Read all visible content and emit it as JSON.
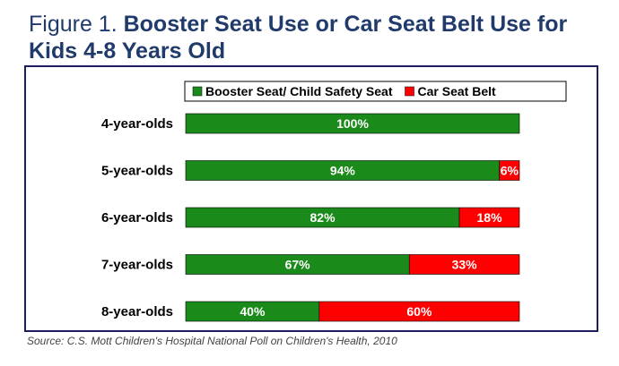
{
  "title": {
    "prefix": "Figure 1. ",
    "main": "Booster Seat Use or Car Seat Belt Use for Kids 4-8 Years Old"
  },
  "source": "Source: C.S. Mott Children's Hospital National Poll on Children's Health, 2010",
  "colors": {
    "booster": "#1a8a1a",
    "belt": "#ff0000",
    "frame": "#1b1f5e",
    "title": "#1f3a6b"
  },
  "chart_data": {
    "type": "bar",
    "orientation": "horizontal",
    "stacked": true,
    "percent_stacked": true,
    "categories": [
      "4-year-olds",
      "5-year-olds",
      "6-year-olds",
      "7-year-olds",
      "8-year-olds"
    ],
    "series": [
      {
        "name": "Booster Seat/ Child Safety Seat",
        "values": [
          100,
          94,
          82,
          67,
          40
        ],
        "labels": [
          "100%",
          "94%",
          "82%",
          "67%",
          "40%"
        ],
        "color": "#1a8a1a"
      },
      {
        "name": "Car Seat Belt",
        "values": [
          0,
          6,
          18,
          33,
          60
        ],
        "labels": [
          "",
          "6%",
          "18%",
          "33%",
          "60%"
        ],
        "color": "#ff0000"
      }
    ],
    "xlim": [
      0,
      100
    ],
    "grid": false,
    "legend": "top-right"
  }
}
